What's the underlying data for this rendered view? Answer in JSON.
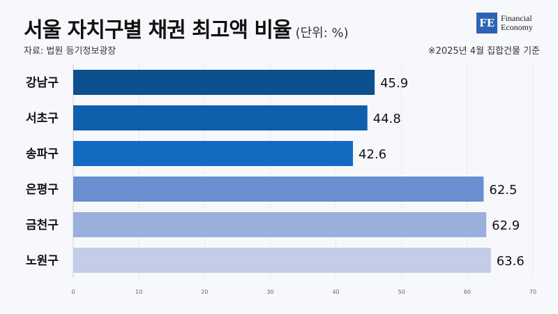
{
  "header": {
    "title": "서울 자치구별 채권 최고액 비율",
    "unit": "(단위: %)",
    "source": "자료: 법원 등기정보광장",
    "basis": "※2025년 4월 집합건물 기준"
  },
  "logo": {
    "mark": "FE",
    "line1": "Financial",
    "line2": "Economy"
  },
  "chart_data": {
    "type": "bar",
    "orientation": "horizontal",
    "title": "서울 자치구별 채권 최고액 비율",
    "categories": [
      "강남구",
      "서초구",
      "송파구",
      "은평구",
      "금천구",
      "노원구"
    ],
    "values": [
      45.9,
      44.8,
      42.6,
      62.5,
      62.9,
      63.6
    ],
    "value_labels": [
      "45.9",
      "44.8",
      "42.6",
      "62.5",
      "62.9",
      "63.6"
    ],
    "colors": [
      "#0d4f8f",
      "#0f5fac",
      "#126bc1",
      "#6a8fd0",
      "#9aafdb",
      "#c3cde8"
    ],
    "xlim": [
      0,
      70
    ],
    "xticks": [
      "0",
      "10",
      "20",
      "30",
      "40",
      "50",
      "60",
      "70"
    ],
    "grid": true
  }
}
